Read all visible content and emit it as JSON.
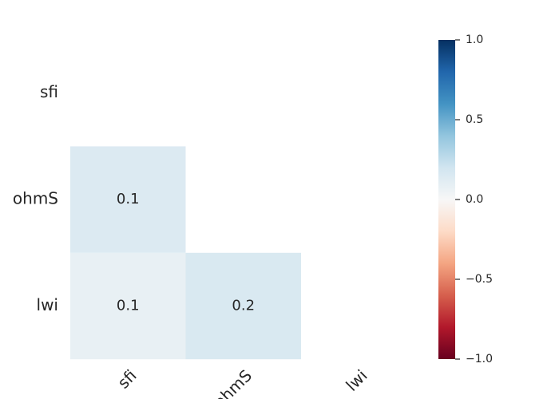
{
  "chart_data": {
    "type": "heatmap",
    "x": [
      "sfi",
      "ohmS",
      "lwi"
    ],
    "y": [
      "sfi",
      "ohmS",
      "lwi"
    ],
    "values": [
      [
        null,
        null,
        null
      ],
      [
        0.14,
        null,
        null
      ],
      [
        0.08,
        0.16,
        null
      ]
    ],
    "value_labels": [
      [
        null,
        null,
        null
      ],
      [
        "0.1",
        null,
        null
      ],
      [
        "0.1",
        "0.2",
        null
      ]
    ],
    "clim": [
      -1,
      1
    ],
    "cticks": [
      {
        "value": -1,
        "label": "−1.0"
      },
      {
        "value": -0.5,
        "label": "−0.5"
      },
      {
        "value": 0,
        "label": "0.0"
      },
      0.5,
      {
        "value": 1,
        "label": "1.0"
      }
    ]
  }
}
